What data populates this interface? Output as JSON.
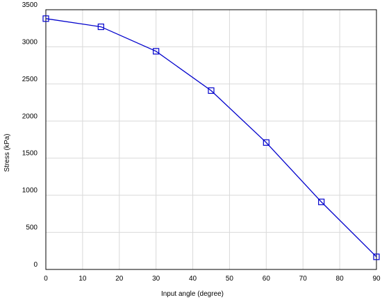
{
  "chart_data": {
    "type": "line",
    "x_label": "Input angle (degree)",
    "y_label": "Stress (kPa)",
    "x": [
      0,
      15,
      30,
      45,
      60,
      75,
      90
    ],
    "series": [
      {
        "color": "#0000cc",
        "values": [
          3380,
          3270,
          2940,
          2410,
          1710,
          910,
          170
        ]
      }
    ],
    "xlim": [
      0,
      90
    ],
    "xticks": [
      0,
      10,
      20,
      30,
      40,
      50,
      60,
      70,
      80,
      90
    ],
    "ylim": [
      0,
      3500
    ],
    "yticks": [
      0,
      500,
      1000,
      1500,
      2000,
      2500,
      3000,
      3500
    ],
    "grid": true,
    "marker": "square"
  }
}
